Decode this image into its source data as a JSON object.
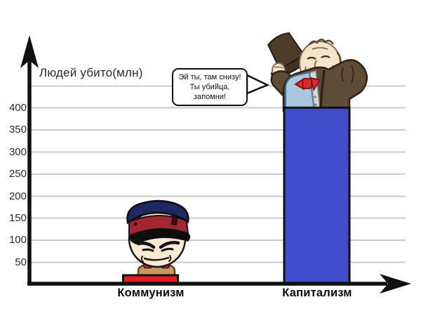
{
  "chart_data": {
    "type": "bar",
    "title": "",
    "ylabel": "Людей убито(млн)",
    "categories": [
      "Коммунизм",
      "Капитализм"
    ],
    "values": [
      20,
      400
    ],
    "bar_colors": [
      "#e41d25",
      "#424bc9"
    ],
    "y_tick_labels": [
      "400",
      "350",
      "300",
      "250",
      "200",
      "150",
      "100",
      "50"
    ],
    "ylim": [
      0,
      450
    ],
    "grid": true,
    "gridline_color": "#cacaca",
    "legend": "none"
  },
  "speech_bubble": {
    "speaker": "capitalist-character",
    "line1": "Эй ты, там снизу!",
    "line2": "Ты убийца,",
    "line3": "запомни!"
  },
  "characters": {
    "communism_bar": "soviet-officer-in-peaked-cap",
    "capitalism_bar": "capitalist-tipping-top-hat"
  },
  "colors": {
    "axis": "#111111",
    "text": "#2a2a2a"
  }
}
